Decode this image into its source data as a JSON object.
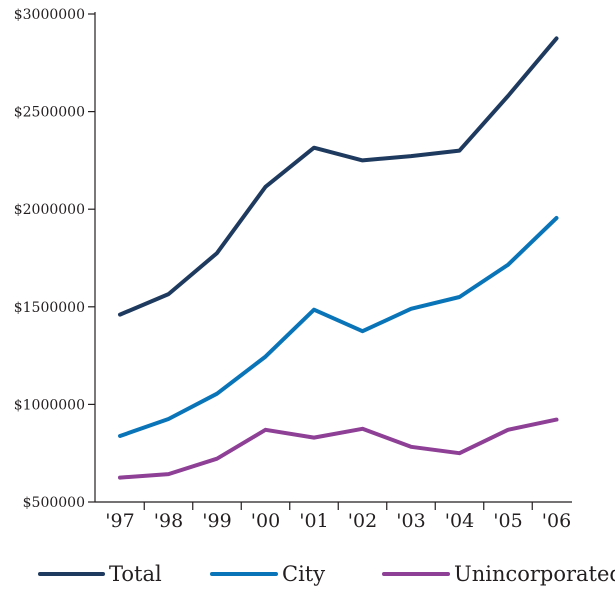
{
  "chart_data": {
    "type": "line",
    "title": "",
    "xlabel": "",
    "ylabel": "",
    "categories": [
      "'97",
      "'98",
      "'99",
      "'00",
      "'01",
      "'02",
      "'03",
      "'04",
      "'05",
      "'06"
    ],
    "ylim": [
      500000,
      3000000
    ],
    "yticks": [
      500000,
      1000000,
      1500000,
      2000000,
      2500000,
      3000000
    ],
    "ytick_labels": [
      "$500000",
      "$1000000",
      "$1500000",
      "$2000000",
      "$2500000",
      "$3000000"
    ],
    "grid": false,
    "legend": "bottom",
    "series": [
      {
        "name": "Total",
        "color": "#1f3a5f",
        "values": [
          1460000,
          1565000,
          1775000,
          2115000,
          2315000,
          2250000,
          2272000,
          2300000,
          2580000,
          2875000
        ]
      },
      {
        "name": "City",
        "color": "#0a74b8",
        "values": [
          838000,
          925000,
          1055000,
          1245000,
          1485000,
          1375000,
          1490000,
          1550000,
          1715000,
          1955000
        ]
      },
      {
        "name": "Unincorporated",
        "color": "#8e3f96",
        "values": [
          625000,
          643000,
          722000,
          870000,
          830000,
          875000,
          783000,
          750000,
          870000,
          922000
        ]
      }
    ]
  }
}
